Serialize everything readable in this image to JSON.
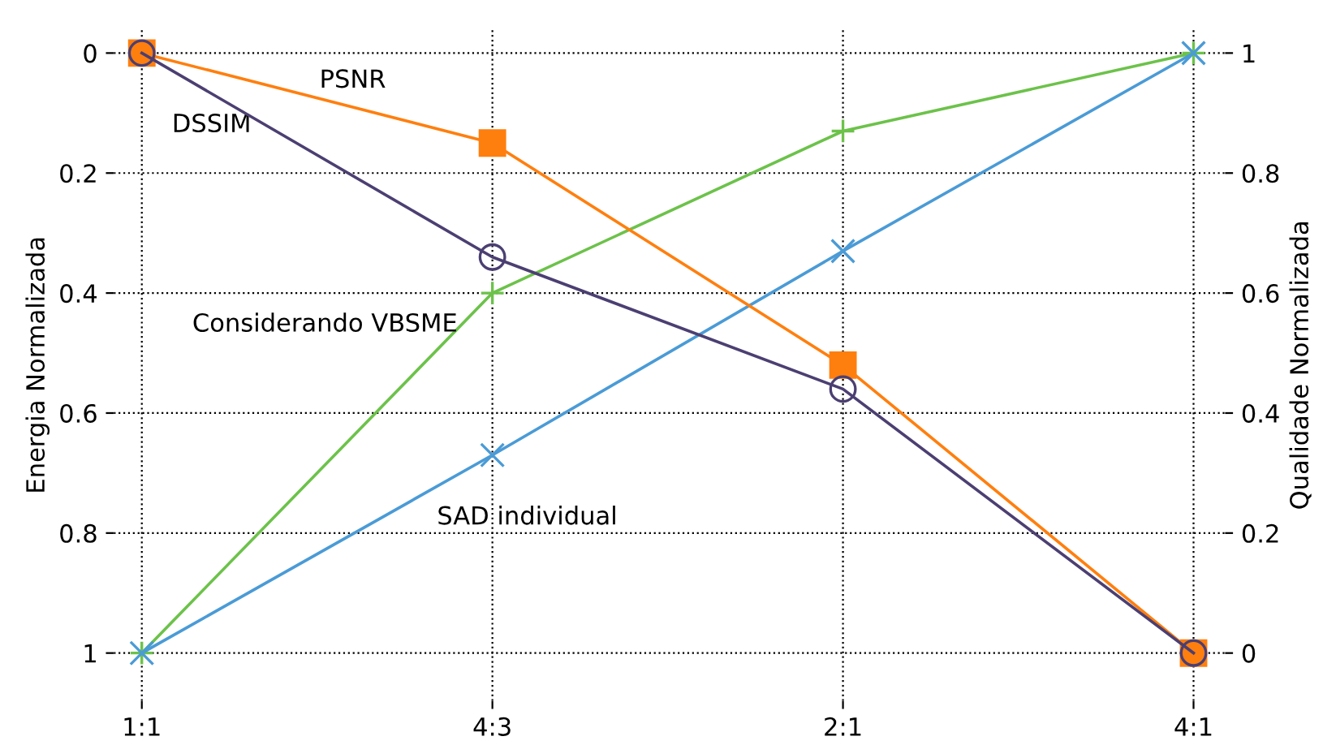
{
  "chart_data": {
    "type": "line",
    "ylabel": "Energia Normalizada",
    "y2label": "Qualidade Normalizada",
    "categories": [
      "1:1",
      "4:3",
      "2:1",
      "4:1"
    ],
    "ylim": [
      1.08,
      -0.04
    ],
    "yticks": [
      0,
      0.2,
      0.4,
      0.6,
      0.8,
      1
    ],
    "y2lim": [
      -0.08,
      1.04
    ],
    "y2ticks": [
      0,
      0.2,
      0.4,
      0.6,
      0.8,
      1
    ],
    "grid": true,
    "line_style": "solid",
    "series": [
      {
        "color": "#ff7f0e",
        "marker": "square",
        "axis": "y2",
        "values": [
          1,
          0.85,
          0.48,
          0
        ]
      },
      {
        "color": "#4b3f72",
        "marker": "circle",
        "axis": "y2",
        "values": [
          1,
          0.66,
          0.44,
          0
        ]
      },
      {
        "color": "#6cc24a",
        "marker": "cross",
        "values": [
          1,
          0.4,
          0.13,
          0
        ]
      },
      {
        "color": "#4a9bd6",
        "marker": "x",
        "values": [
          1,
          0.67,
          0.33,
          0
        ]
      }
    ],
    "annotations": [
      "PSNR",
      "DSSIM",
      "Considerando VBSME",
      "SAD individual"
    ]
  }
}
